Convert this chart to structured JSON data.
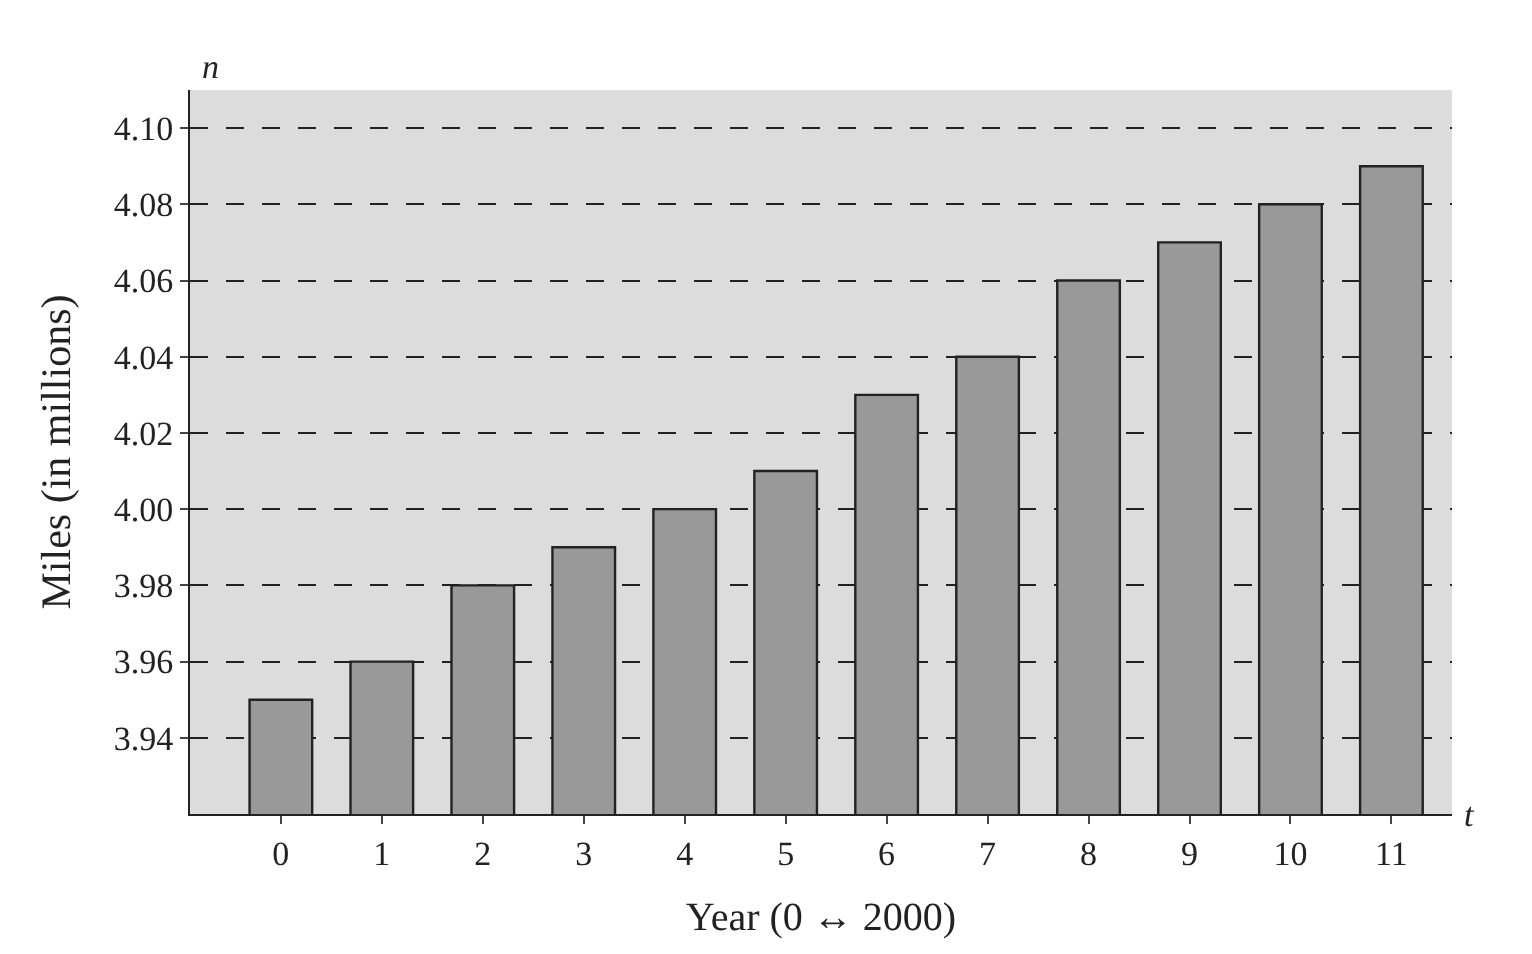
{
  "chart_data": {
    "type": "bar",
    "xlabel": "Year (0 ↔ 2000)",
    "ylabel": "Miles (in millions)",
    "categories": [
      "0",
      "1",
      "2",
      "3",
      "4",
      "5",
      "6",
      "7",
      "8",
      "9",
      "10",
      "11"
    ],
    "values": [
      3.95,
      3.96,
      3.98,
      3.99,
      4.0,
      4.01,
      4.03,
      4.04,
      4.06,
      4.07,
      4.08,
      4.09
    ],
    "color": "#999999",
    "ylim": [
      3.92,
      4.11
    ],
    "yticks": [
      {
        "value": 3.94,
        "label": "3.94"
      },
      {
        "value": 3.96,
        "label": "3.96"
      },
      {
        "value": 3.98,
        "label": "3.98"
      },
      {
        "value": 4.0,
        "label": "4.00"
      },
      {
        "value": 4.02,
        "label": "4.02"
      },
      {
        "value": 4.04,
        "label": "4.04"
      },
      {
        "value": 4.06,
        "label": "4.06"
      },
      {
        "value": 4.08,
        "label": "4.08"
      },
      {
        "value": 4.1,
        "label": "4.10"
      }
    ],
    "grid": "y",
    "line_style": "dashed",
    "annotations": [
      "n",
      "t"
    ]
  }
}
